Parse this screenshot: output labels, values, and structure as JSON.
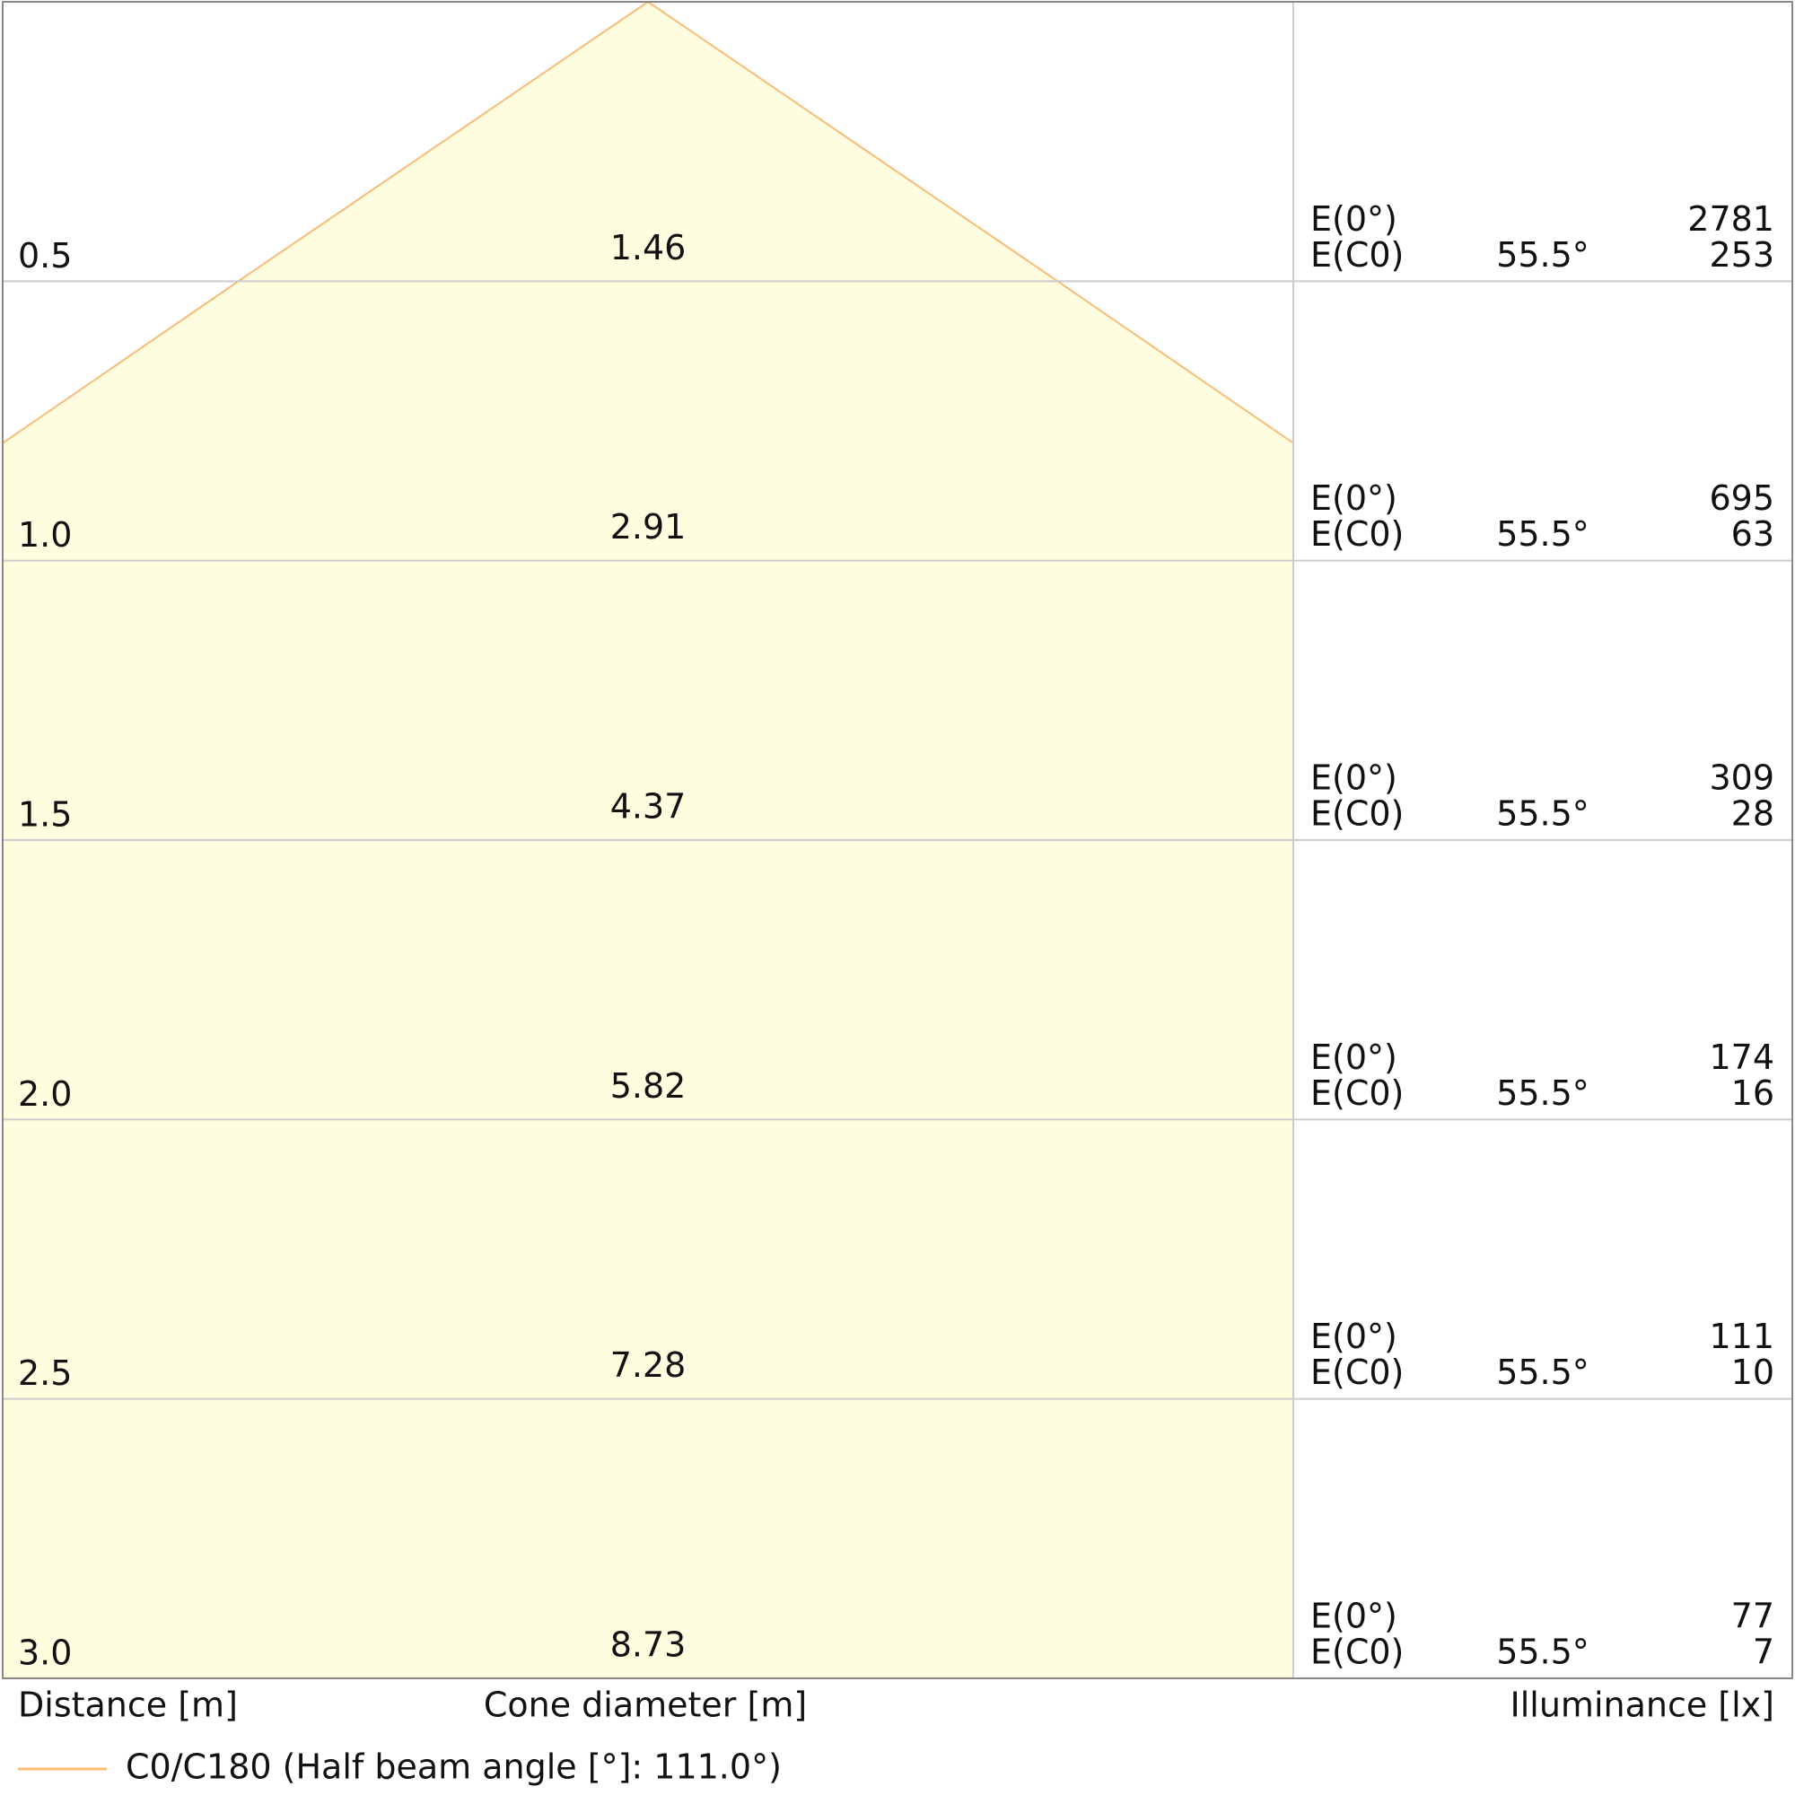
{
  "chart_data": {
    "type": "cone",
    "x_label": "Distance [m]",
    "diameter_label": "Cone diameter [m]",
    "illuminance_label": "Illuminance [lx]",
    "e0_label": "E(0°)",
    "ec0_label": "E(C0)",
    "ylim": [
      0,
      3
    ],
    "xlim": [
      -1.15,
      1.15
    ],
    "yticks": [
      0.5,
      {
        "value": 1,
        "label": "1.0"
      },
      1.5,
      {
        "value": 2,
        "label": "2.0"
      },
      2.5,
      {
        "value": 3,
        "label": "3.0"
      }
    ],
    "diameters": [
      1.46,
      2.91,
      4.37,
      5.82,
      7.28,
      8.73
    ],
    "angles": [
      55.5,
      55.5,
      55.5,
      55.5,
      55.5,
      55.5
    ],
    "angle_labels": [
      "55.5°",
      "55.5°",
      "55.5°",
      "55.5°",
      "55.5°",
      "55.5°"
    ],
    "e0": [
      2781,
      695,
      309,
      174,
      111,
      77
    ],
    "ec0": [
      253,
      63,
      28,
      16,
      10,
      7
    ],
    "series": [
      {
        "name": "C0/C180 (Half beam angle [°]: 111.0°)",
        "color": "#f9bb75",
        "fill": "#fffde0"
      }
    ]
  }
}
